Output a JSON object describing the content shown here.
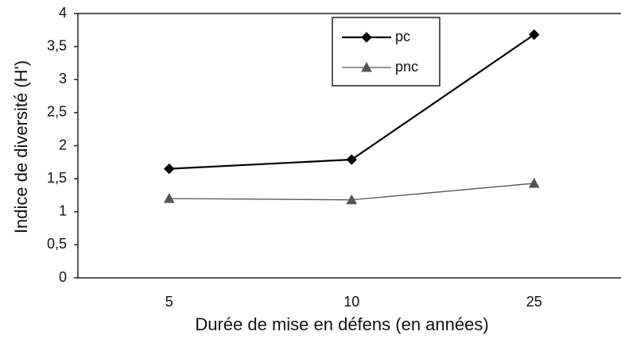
{
  "chart_data": {
    "type": "line",
    "xlabel": "Durée de mise en défens (en années)",
    "ylabel": "Indice de diversité (H')",
    "categories": [
      "5",
      "10",
      "25"
    ],
    "series": [
      {
        "name": "pc",
        "color": "#000000",
        "marker": "diamond",
        "values": [
          1.65,
          1.79,
          3.68
        ]
      },
      {
        "name": "pnc",
        "color": "#555555",
        "marker": "triangle",
        "values": [
          1.2,
          1.18,
          1.43
        ]
      }
    ],
    "ylim": [
      0,
      4
    ],
    "yticks": [
      0,
      {
        "value": 0.5,
        "label": "0,5"
      },
      1,
      {
        "value": 1.5,
        "label": "1,5"
      },
      2,
      {
        "value": 2.5,
        "label": "2,5"
      },
      3,
      {
        "value": 3.5,
        "label": "3,5"
      },
      4
    ],
    "grid": false
  }
}
